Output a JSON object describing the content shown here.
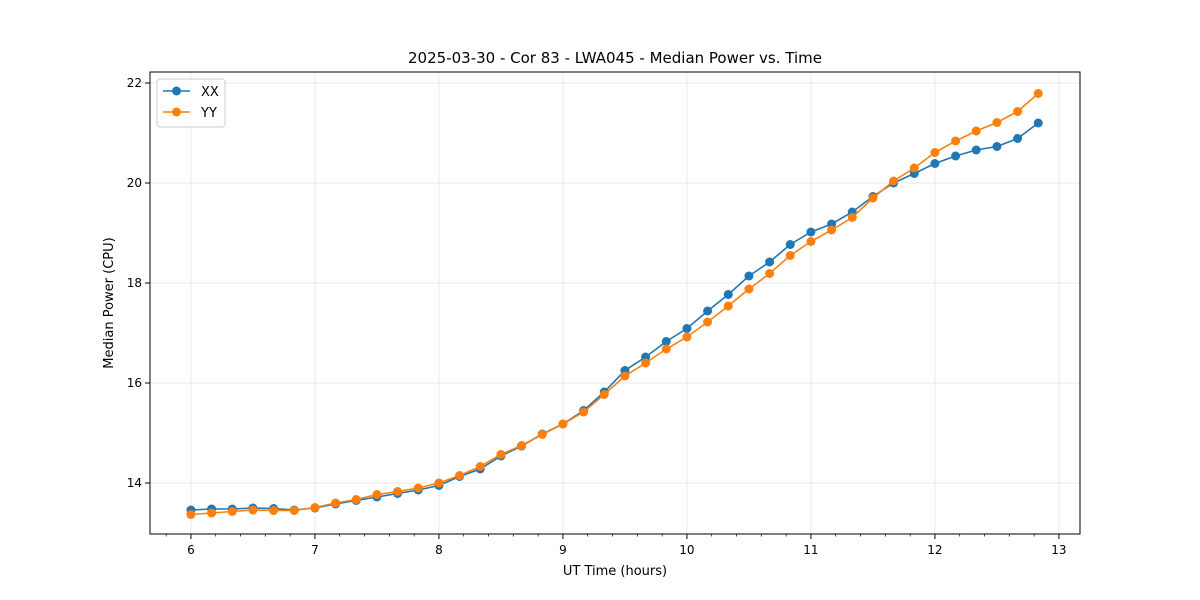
{
  "chart_data": {
    "type": "line",
    "title": "2025-03-30 - Cor 83 - LWA045 - Median Power vs. Time",
    "xlabel": "UT Time (hours)",
    "ylabel": "Median Power (CPU)",
    "xlim": [
      5.67,
      13.17
    ],
    "ylim": [
      12.98,
      22.22
    ],
    "xticks": [
      6,
      7,
      8,
      9,
      10,
      11,
      12,
      13
    ],
    "yticks": [
      14,
      16,
      18,
      20,
      22
    ],
    "grid": true,
    "legend": "top-left",
    "x": [
      6.0,
      6.1667,
      6.3333,
      6.5,
      6.6667,
      6.8333,
      7.0,
      7.1667,
      7.3333,
      7.5,
      7.6667,
      7.8333,
      8.0,
      8.1667,
      8.3333,
      8.5,
      8.6667,
      8.8333,
      9.0,
      9.1667,
      9.3333,
      9.5,
      9.6667,
      9.8333,
      10.0,
      10.1667,
      10.3333,
      10.5,
      10.6667,
      10.8333,
      11.0,
      11.1667,
      11.3333,
      11.5,
      11.6667,
      11.8333,
      12.0,
      12.1667,
      12.3333,
      12.5,
      12.6667,
      12.8333
    ],
    "series": [
      {
        "name": "XX",
        "color": "#1f77b4",
        "values": [
          13.46,
          13.48,
          13.48,
          13.5,
          13.49,
          13.46,
          13.5,
          13.58,
          13.65,
          13.72,
          13.79,
          13.86,
          13.95,
          14.13,
          14.28,
          14.54,
          14.74,
          14.98,
          15.18,
          15.45,
          15.82,
          16.25,
          16.52,
          16.83,
          17.09,
          17.44,
          17.77,
          18.14,
          18.42,
          18.77,
          19.02,
          19.18,
          19.42,
          19.73,
          20.0,
          20.19,
          20.39,
          20.54,
          20.66,
          20.73,
          20.89,
          21.2
        ]
      },
      {
        "name": "YY",
        "color": "#ff7f0e",
        "values": [
          13.37,
          13.4,
          13.43,
          13.46,
          13.45,
          13.45,
          13.51,
          13.6,
          13.67,
          13.77,
          13.83,
          13.9,
          14.0,
          14.15,
          14.33,
          14.57,
          14.75,
          14.97,
          15.18,
          15.42,
          15.77,
          16.14,
          16.4,
          16.68,
          16.92,
          17.22,
          17.54,
          17.88,
          18.19,
          18.55,
          18.83,
          19.06,
          19.31,
          19.7,
          20.04,
          20.3,
          20.61,
          20.84,
          21.04,
          21.21,
          21.43,
          21.79
        ]
      }
    ]
  }
}
